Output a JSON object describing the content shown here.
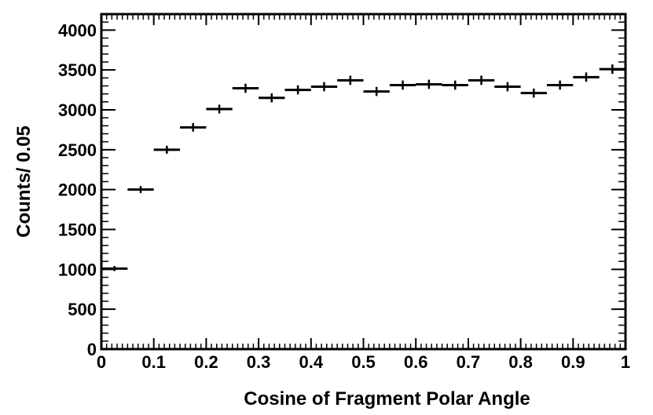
{
  "chart_data": {
    "type": "scatter",
    "style": "histogram-points-with-x-bin-errors",
    "xlabel": "Cosine of Fragment Polar Angle",
    "ylabel": "Counts/ 0.05",
    "xlim": [
      0,
      1
    ],
    "ylim": [
      0,
      4200
    ],
    "x_ticks": [
      0,
      0.1,
      0.2,
      0.3,
      0.4,
      0.5,
      0.6,
      0.7,
      0.8,
      0.9,
      1
    ],
    "x_tick_labels": [
      "0",
      "0.1",
      "0.2",
      "0.3",
      "0.4",
      "0.5",
      "0.6",
      "0.7",
      "0.8",
      "0.9",
      "1"
    ],
    "y_ticks": [
      0,
      500,
      1000,
      1500,
      2000,
      2500,
      3000,
      3500,
      4000
    ],
    "y_tick_labels": [
      "0",
      "500",
      "1000",
      "1500",
      "2000",
      "2500",
      "3000",
      "3500",
      "4000"
    ],
    "bin_width": 0.05,
    "x": [
      0.025,
      0.075,
      0.125,
      0.175,
      0.225,
      0.275,
      0.325,
      0.375,
      0.425,
      0.475,
      0.525,
      0.575,
      0.625,
      0.675,
      0.725,
      0.775,
      0.825,
      0.875,
      0.925,
      0.975
    ],
    "values": [
      1010,
      2000,
      2500,
      2780,
      3010,
      3270,
      3150,
      3250,
      3290,
      3370,
      3230,
      3310,
      3320,
      3310,
      3370,
      3290,
      3210,
      3310,
      3410,
      3510
    ],
    "grid": false,
    "legend": "none"
  }
}
